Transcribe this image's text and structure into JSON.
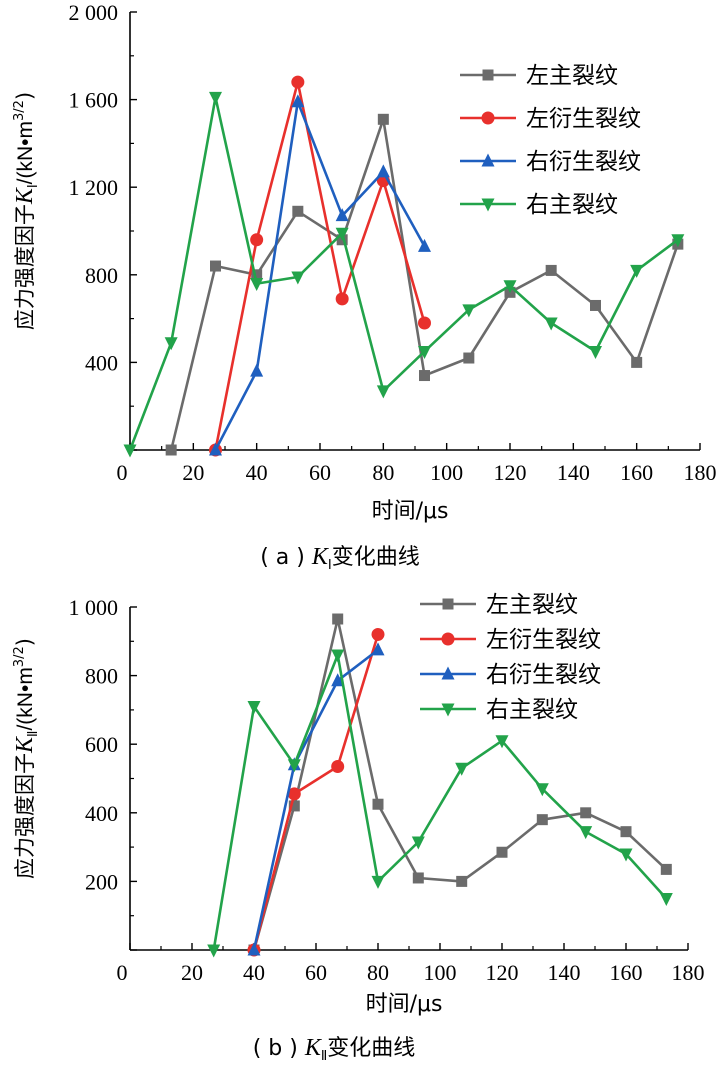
{
  "chart_data": [
    {
      "type": "line",
      "caption_prefix": "( a )",
      "caption_symbol": "K",
      "caption_sub": "Ⅰ",
      "caption_suffix": "变化曲线",
      "ylabel_text": "应力强度因子",
      "ylabel_symbol": "K",
      "ylabel_sub": "Ⅰ",
      "ylabel_unit": "/(kN•m",
      "ylabel_unit_exp": "3/2",
      "ylabel_unit_close": ")",
      "xlabel": "时间/μs",
      "xlim": [
        0,
        180
      ],
      "ylim": [
        0,
        2000
      ],
      "x_ticks": [
        "0",
        "20",
        "40",
        "60",
        "80",
        "100",
        "120",
        "140",
        "160",
        "180"
      ],
      "y_ticks": [
        "",
        "400",
        "800",
        "1 200",
        "1 600",
        "2 000"
      ],
      "legend_position": "top-right",
      "series": [
        {
          "name": "左主裂纹",
          "color": "#6b6b6b",
          "marker": "square",
          "x": [
            13,
            27,
            40,
            53,
            67,
            80,
            93,
            107,
            120,
            133,
            147,
            160,
            173
          ],
          "y": [
            0,
            840,
            800,
            1090,
            960,
            1510,
            340,
            420,
            720,
            820,
            660,
            400,
            940
          ]
        },
        {
          "name": "左衍生裂纹",
          "color": "#e8302c",
          "marker": "circle",
          "x": [
            27,
            40,
            53,
            67,
            80,
            93
          ],
          "y": [
            0,
            960,
            1680,
            690,
            1230,
            580
          ]
        },
        {
          "name": "右衍生裂纹",
          "color": "#1f5fbf",
          "marker": "triangle-up",
          "x": [
            27,
            40,
            53,
            67,
            80,
            93
          ],
          "y": [
            0,
            360,
            1590,
            1070,
            1270,
            930
          ]
        },
        {
          "name": "右主裂纹",
          "color": "#22a34a",
          "marker": "triangle-down",
          "x": [
            0,
            13,
            27,
            40,
            53,
            67,
            80,
            93,
            107,
            120,
            133,
            147,
            160,
            173
          ],
          "y": [
            0,
            490,
            1610,
            760,
            790,
            990,
            270,
            450,
            640,
            750,
            580,
            450,
            820,
            960
          ]
        }
      ]
    },
    {
      "type": "line",
      "caption_prefix": "( b )",
      "caption_symbol": "K",
      "caption_sub": "Ⅱ",
      "caption_suffix": "变化曲线",
      "ylabel_text": "应力强度因子",
      "ylabel_symbol": "K",
      "ylabel_sub": "Ⅱ",
      "ylabel_unit": "/(kN•m",
      "ylabel_unit_exp": "3/2",
      "ylabel_unit_close": ")",
      "xlabel": "时间/μs",
      "xlim": [
        0,
        180
      ],
      "ylim": [
        0,
        1000
      ],
      "x_ticks": [
        "0",
        "20",
        "40",
        "60",
        "80",
        "100",
        "120",
        "140",
        "160",
        "180"
      ],
      "y_ticks": [
        "",
        "200",
        "400",
        "600",
        "800",
        "1 000"
      ],
      "legend_position": "top-right",
      "series": [
        {
          "name": "左主裂纹",
          "color": "#6b6b6b",
          "marker": "square",
          "x": [
            40,
            53,
            67,
            80,
            93,
            107,
            120,
            133,
            147,
            160,
            173
          ],
          "y": [
            0,
            420,
            965,
            425,
            210,
            200,
            285,
            380,
            400,
            345,
            235
          ]
        },
        {
          "name": "左衍生裂纹",
          "color": "#e8302c",
          "marker": "circle",
          "x": [
            40,
            53,
            67,
            80
          ],
          "y": [
            0,
            455,
            535,
            920
          ]
        },
        {
          "name": "右衍生裂纹",
          "color": "#1f5fbf",
          "marker": "triangle-up",
          "x": [
            40,
            53,
            67,
            80
          ],
          "y": [
            0,
            540,
            785,
            875
          ]
        },
        {
          "name": "右主裂纹",
          "color": "#22a34a",
          "marker": "triangle-down",
          "x": [
            27,
            40,
            53,
            67,
            80,
            93,
            107,
            120,
            133,
            147,
            160,
            173
          ],
          "y": [
            0,
            710,
            540,
            860,
            200,
            315,
            530,
            610,
            470,
            345,
            280,
            150
          ]
        }
      ]
    }
  ]
}
